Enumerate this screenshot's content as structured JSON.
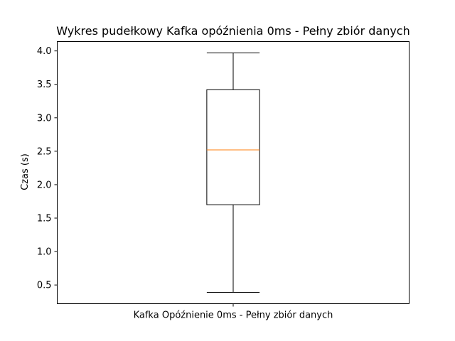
{
  "chart_data": {
    "type": "box",
    "title": "Wykres pudełkowy Kafka opóźnienia 0ms - Pełny zbiór danych",
    "xlabel": "",
    "ylabel": "Czas (s)",
    "categories": [
      "Kafka Opóźnienie 0ms - Pełny zbiór danych"
    ],
    "boxes": [
      {
        "name": "Kafka Opóźnienie 0ms - Pełny zbiór danych",
        "whisker_low": 0.39,
        "q1": 1.7,
        "median": 2.52,
        "q3": 3.42,
        "whisker_high": 3.97
      }
    ],
    "ylim": [
      0.22,
      4.14
    ],
    "yticks": [
      0.5,
      1.0,
      1.5,
      2.0,
      2.5,
      3.0,
      3.5,
      4.0
    ],
    "grid": false,
    "colors": {
      "box": "#000000",
      "median": "#ff7f0e",
      "axes": "#000000"
    }
  }
}
